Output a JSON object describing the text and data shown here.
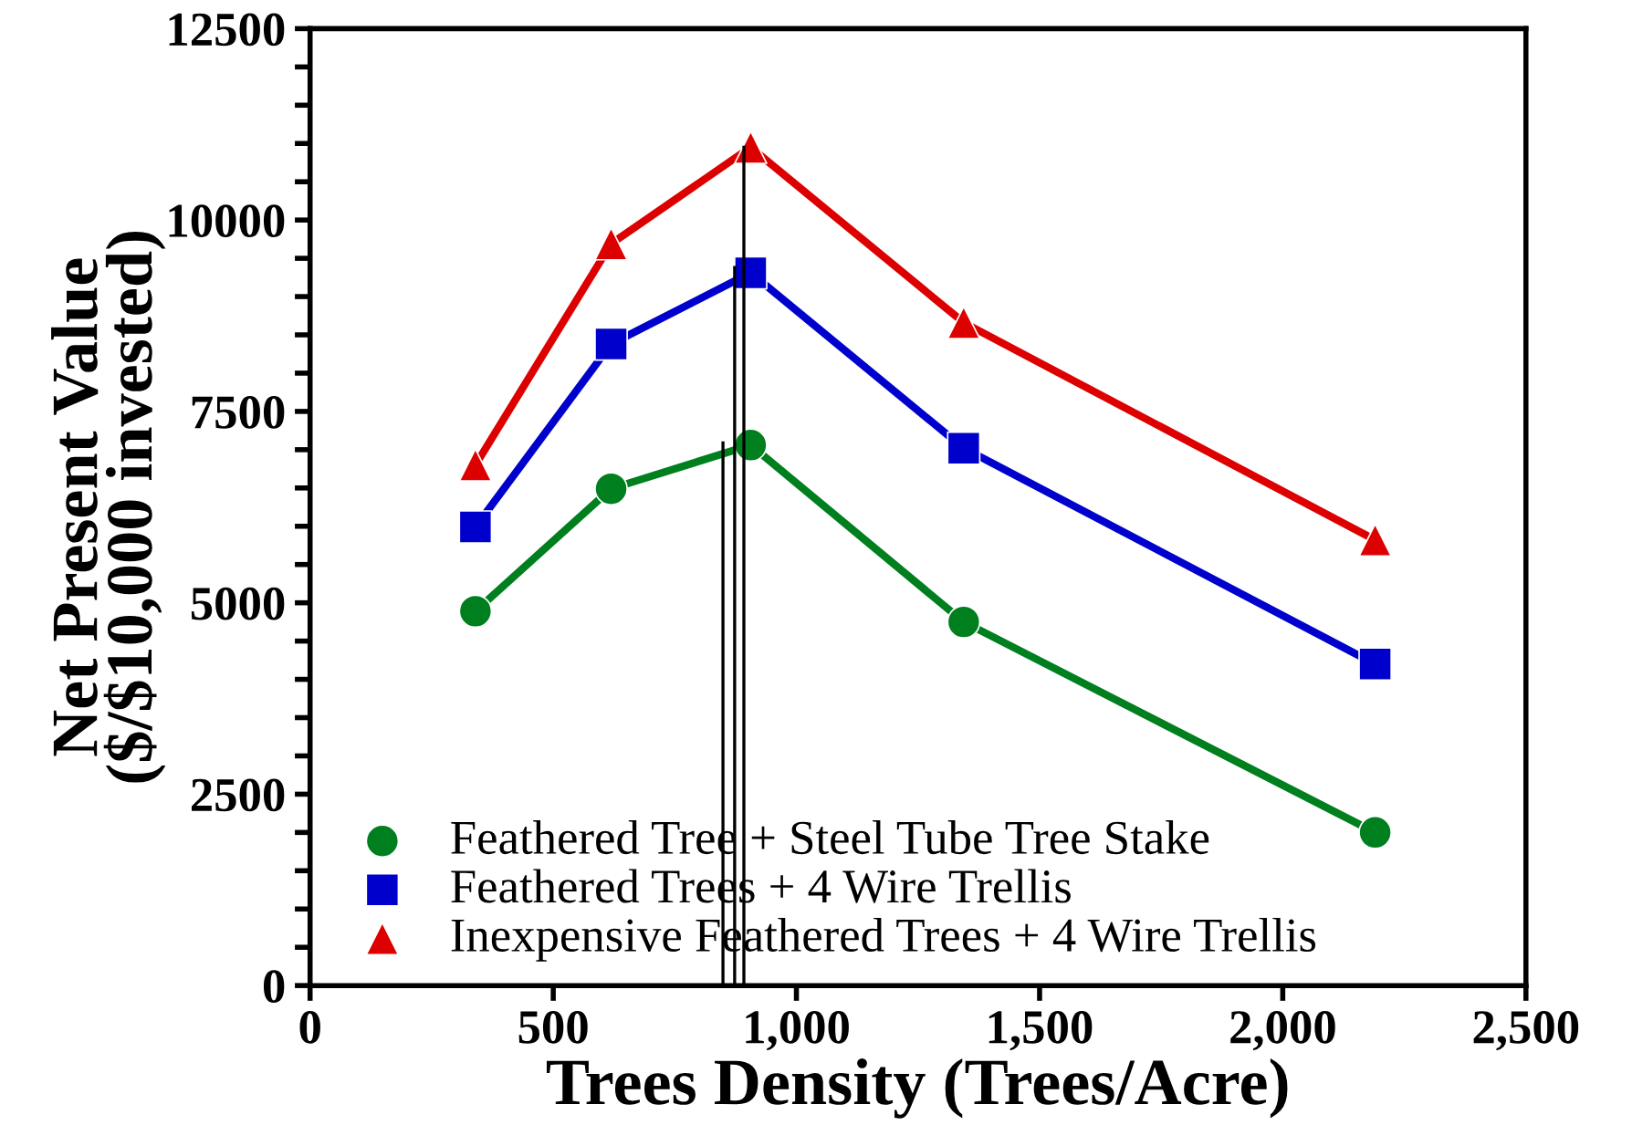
{
  "chart_data": {
    "type": "line",
    "xlabel": "Trees Density (Trees/Acre)",
    "ylabel": "Net Present Value\n($/$10,000 invested)",
    "xlim": [
      0,
      2500
    ],
    "xticks": [
      0,
      500,
      {
        "value": 1000,
        "label": "1,000"
      },
      {
        "value": 1500,
        "label": "1,500"
      },
      {
        "value": 2000,
        "label": "2,000"
      },
      {
        "value": 2500,
        "label": "2,500"
      }
    ],
    "ylim": [
      0,
      12500
    ],
    "yticks": [
      0,
      {
        "value": 500,
        "label": null
      },
      {
        "value": 1000,
        "label": null
      },
      {
        "value": 1500,
        "label": null
      },
      {
        "value": 2000,
        "label": null
      },
      2500,
      {
        "value": 3000,
        "label": null
      },
      {
        "value": 3500,
        "label": null
      },
      {
        "value": 4000,
        "label": null
      },
      {
        "value": 4500,
        "label": null
      },
      5000,
      {
        "value": 5500,
        "label": null
      },
      {
        "value": 6000,
        "label": null
      },
      {
        "value": 6500,
        "label": null
      },
      {
        "value": 7000,
        "label": null
      },
      7500,
      {
        "value": 8000,
        "label": null
      },
      {
        "value": 8500,
        "label": null
      },
      {
        "value": 9000,
        "label": null
      },
      {
        "value": 9500,
        "label": null
      },
      10000,
      {
        "value": 10500,
        "label": null
      },
      {
        "value": 11000,
        "label": null
      },
      {
        "value": 11500,
        "label": null
      },
      {
        "value": 12000,
        "label": null
      },
      12500
    ],
    "grid": false,
    "legend": "bottom left",
    "series": [
      {
        "name": "Feathered Tree + Steel Tube Tree Stake",
        "color": "#007f1f",
        "marker": "circle",
        "x": [
          340,
          619,
          906,
          1344,
          2190
        ],
        "values": [
          4890,
          6490,
          7060,
          4750,
          2000
        ]
      },
      {
        "name": "Feathered Trees + 4 Wire Trellis",
        "color": "#0000cc",
        "marker": "square",
        "x": [
          340,
          619,
          906,
          1344,
          2190
        ],
        "values": [
          5990,
          8380,
          9310,
          7020,
          4200
        ]
      },
      {
        "name": "Inexpensive Feathered Trees + 4 Wire Trellis",
        "color": "#dd0000",
        "marker": "triangle",
        "x": [
          340,
          619,
          906,
          1344,
          2190
        ],
        "values": [
          6800,
          9690,
          10950,
          8660,
          5820
        ]
      },
      {
        "color": "#000000",
        "marker": "none",
        "x": [
          849,
          849
        ],
        "values": [
          0,
          7090
        ]
      },
      {
        "color": "#000000",
        "marker": "none",
        "x": [
          873,
          873
        ],
        "values": [
          0,
          9380
        ]
      },
      {
        "color": "#000000",
        "marker": "none",
        "x": [
          892,
          892
        ],
        "values": [
          0,
          10950
        ]
      }
    ]
  }
}
